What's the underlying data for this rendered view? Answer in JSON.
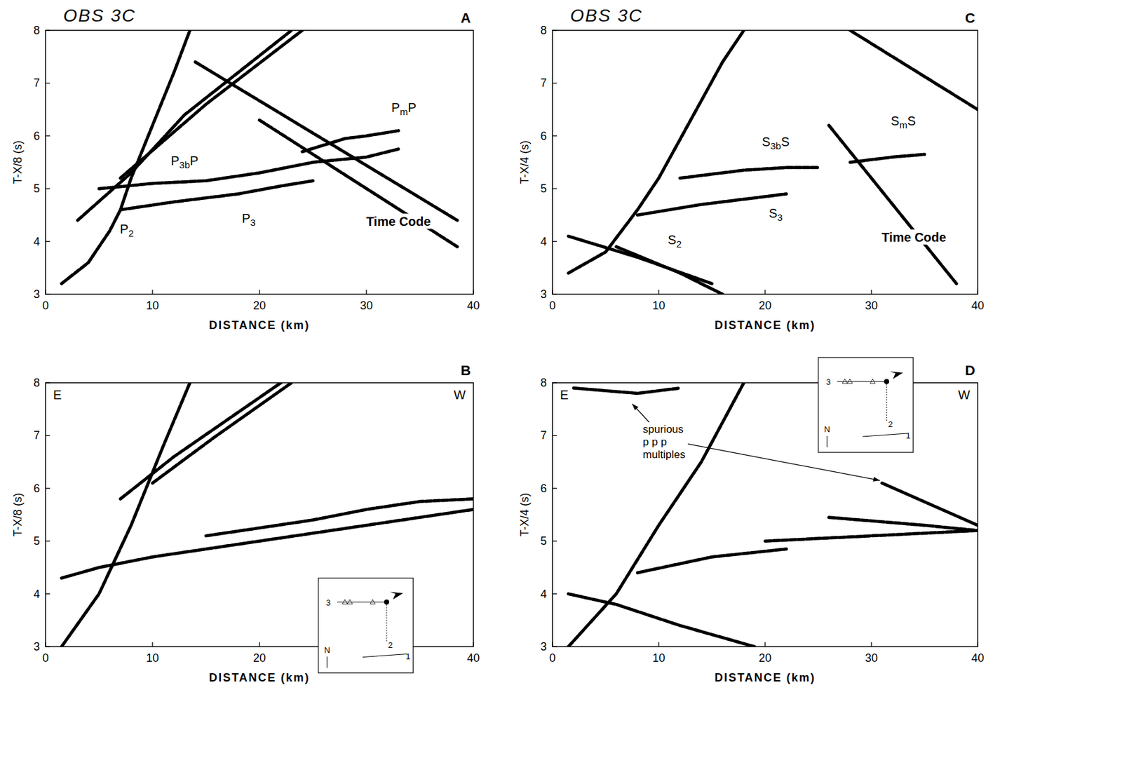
{
  "chart_data": [
    {
      "type": "line",
      "title": "OBS 3C",
      "panel": "A",
      "x_label": "DISTANCE (km)",
      "y_label": "T-X/8 (s)",
      "xlim": [
        0,
        40
      ],
      "ylim": [
        3,
        8
      ],
      "xticks": [
        0,
        10,
        20,
        30,
        40
      ],
      "yticks": [
        3,
        4,
        5,
        6,
        7,
        8
      ],
      "series": [
        {
          "color": "#000000",
          "x": [
            1.5,
            4,
            6,
            7,
            8,
            10,
            12,
            13.5
          ],
          "values": [
            3.2,
            3.6,
            4.2,
            4.6,
            5.2,
            6.2,
            7.2,
            8
          ]
        },
        {
          "color": "#000000",
          "x": [
            3,
            8,
            13,
            18,
            23
          ],
          "values": [
            4.4,
            5.3,
            6.4,
            7.2,
            8
          ]
        },
        {
          "color": "#000000",
          "x": [
            7,
            15,
            24
          ],
          "values": [
            5.2,
            6.6,
            8
          ]
        },
        {
          "color": "#000000",
          "x": [
            7,
            12,
            18,
            22,
            25
          ],
          "values": [
            4.6,
            4.75,
            4.9,
            5.05,
            5.15
          ]
        },
        {
          "color": "#000000",
          "x": [
            5,
            10,
            15,
            20,
            25,
            30,
            33
          ],
          "values": [
            5.0,
            5.1,
            5.15,
            5.3,
            5.5,
            5.6,
            5.75
          ]
        },
        {
          "color": "#000000",
          "x": [
            24,
            28,
            30,
            33
          ],
          "values": [
            5.7,
            5.95,
            6.0,
            6.1
          ]
        },
        {
          "color": "#000000",
          "x": [
            14,
            38.5
          ],
          "values": [
            7.4,
            4.4
          ]
        },
        {
          "color": "#000000",
          "x": [
            20,
            38.5
          ],
          "values": [
            6.3,
            3.9
          ]
        }
      ],
      "annotations": [
        {
          "text": "P2",
          "x": 7.6,
          "y": 4.15
        },
        {
          "text": "P3",
          "x": 19,
          "y": 4.35
        },
        {
          "text": "P3bP",
          "x": 13,
          "y": 5.45
        },
        {
          "text": "PmP",
          "x": 33.5,
          "y": 6.45
        },
        {
          "text": "Time Code",
          "x": 33,
          "y": 4.3
        }
      ]
    },
    {
      "type": "line",
      "panel": "B",
      "x_label": "DISTANCE (km)",
      "y_label": "T-X/8 (s)",
      "xlim": [
        0,
        40
      ],
      "ylim": [
        3,
        8
      ],
      "xticks": [
        0,
        10,
        20,
        30,
        40
      ],
      "yticks": [
        3,
        4,
        5,
        6,
        7,
        8
      ],
      "corner_labels": [
        "E",
        "W"
      ],
      "inset_labels": [
        "3",
        "2",
        "1",
        "N"
      ],
      "series": [
        {
          "color": "#000000",
          "x": [
            1.5,
            5,
            8,
            11,
            13.5
          ],
          "values": [
            3.0,
            4.0,
            5.3,
            6.8,
            8
          ]
        },
        {
          "color": "#000000",
          "x": [
            7,
            12,
            17,
            22
          ],
          "values": [
            5.8,
            6.6,
            7.3,
            8
          ]
        },
        {
          "color": "#000000",
          "x": [
            10,
            16,
            23
          ],
          "values": [
            6.1,
            7.0,
            8
          ]
        },
        {
          "color": "#000000",
          "x": [
            1.5,
            5,
            10,
            15,
            20,
            30,
            40
          ],
          "values": [
            4.3,
            4.5,
            4.7,
            4.85,
            5.0,
            5.3,
            5.6
          ]
        },
        {
          "color": "#000000",
          "x": [
            15,
            20,
            25,
            30,
            35,
            40
          ],
          "values": [
            5.1,
            5.25,
            5.4,
            5.6,
            5.75,
            5.8
          ]
        }
      ]
    },
    {
      "type": "line",
      "title": "OBS 3C",
      "panel": "C",
      "x_label": "DISTANCE (km)",
      "y_label": "T-X/4 (s)",
      "xlim": [
        0,
        40
      ],
      "ylim": [
        3,
        8
      ],
      "xticks": [
        0,
        10,
        20,
        30,
        40
      ],
      "yticks": [
        3,
        4,
        5,
        6,
        7,
        8
      ],
      "series": [
        {
          "color": "#000000",
          "x": [
            1.5,
            5,
            8,
            10,
            13,
            16,
            18
          ],
          "values": [
            3.4,
            3.8,
            4.6,
            5.2,
            6.3,
            7.4,
            8
          ]
        },
        {
          "color": "#000000",
          "x": [
            1.5,
            8,
            15
          ],
          "values": [
            4.1,
            3.7,
            3.2
          ]
        },
        {
          "color": "#000000",
          "x": [
            6,
            12,
            16
          ],
          "values": [
            3.9,
            3.4,
            3.0
          ]
        },
        {
          "color": "#000000",
          "x": [
            8,
            14,
            20,
            22
          ],
          "values": [
            4.5,
            4.7,
            4.85,
            4.9
          ]
        },
        {
          "color": "#000000",
          "x": [
            12,
            18,
            22,
            25
          ],
          "values": [
            5.2,
            5.35,
            5.4,
            5.4
          ]
        },
        {
          "color": "#000000",
          "x": [
            28,
            32,
            35
          ],
          "values": [
            5.5,
            5.6,
            5.65
          ]
        },
        {
          "color": "#000000",
          "x": [
            26,
            38
          ],
          "values": [
            6.2,
            3.2
          ]
        },
        {
          "color": "#000000",
          "x": [
            28,
            40
          ],
          "values": [
            8.0,
            6.5
          ]
        }
      ],
      "annotations": [
        {
          "text": "S2",
          "x": 11.5,
          "y": 3.95
        },
        {
          "text": "S3",
          "x": 21,
          "y": 4.45
        },
        {
          "text": "S3bS",
          "x": 21,
          "y": 5.8
        },
        {
          "text": "SmS",
          "x": 33,
          "y": 6.2
        },
        {
          "text": "Time Code",
          "x": 34,
          "y": 4.0
        }
      ]
    },
    {
      "type": "line",
      "panel": "D",
      "x_label": "DISTANCE (km)",
      "y_label": "T-X/4 (s)",
      "xlim": [
        0,
        40
      ],
      "ylim": [
        3,
        8
      ],
      "xticks": [
        0,
        10,
        20,
        30,
        40
      ],
      "yticks": [
        3,
        4,
        5,
        6,
        7,
        8
      ],
      "corner_labels": [
        "E",
        "W"
      ],
      "inset_labels": [
        "3",
        "2",
        "1",
        "N"
      ],
      "series": [
        {
          "color": "#000000",
          "x": [
            1.5,
            6,
            10,
            14,
            18
          ],
          "values": [
            3.0,
            4.0,
            5.3,
            6.5,
            8
          ]
        },
        {
          "color": "#000000",
          "x": [
            1.5,
            6,
            12,
            19
          ],
          "values": [
            4.0,
            3.8,
            3.4,
            3.0
          ]
        },
        {
          "color": "#000000",
          "x": [
            8,
            15,
            22
          ],
          "values": [
            4.4,
            4.7,
            4.85
          ]
        },
        {
          "color": "#000000",
          "x": [
            20,
            30,
            40
          ],
          "values": [
            5.0,
            5.1,
            5.2
          ]
        },
        {
          "color": "#000000",
          "x": [
            26,
            35,
            40
          ],
          "values": [
            5.45,
            5.3,
            5.2
          ]
        },
        {
          "color": "#000000",
          "x": [
            31,
            40
          ],
          "values": [
            6.1,
            5.3
          ]
        },
        {
          "color": "#000000",
          "x": [
            2,
            8,
            12
          ],
          "values": [
            7.9,
            7.8,
            7.9
          ]
        }
      ],
      "annotations": [
        {
          "lines": [
            "spurious",
            "p p p",
            "multiples"
          ],
          "x": 8.5,
          "y": 7.05,
          "points": [
            [
              7.5,
              7.6
            ],
            [
              30.8,
              6.15
            ]
          ]
        }
      ]
    }
  ]
}
